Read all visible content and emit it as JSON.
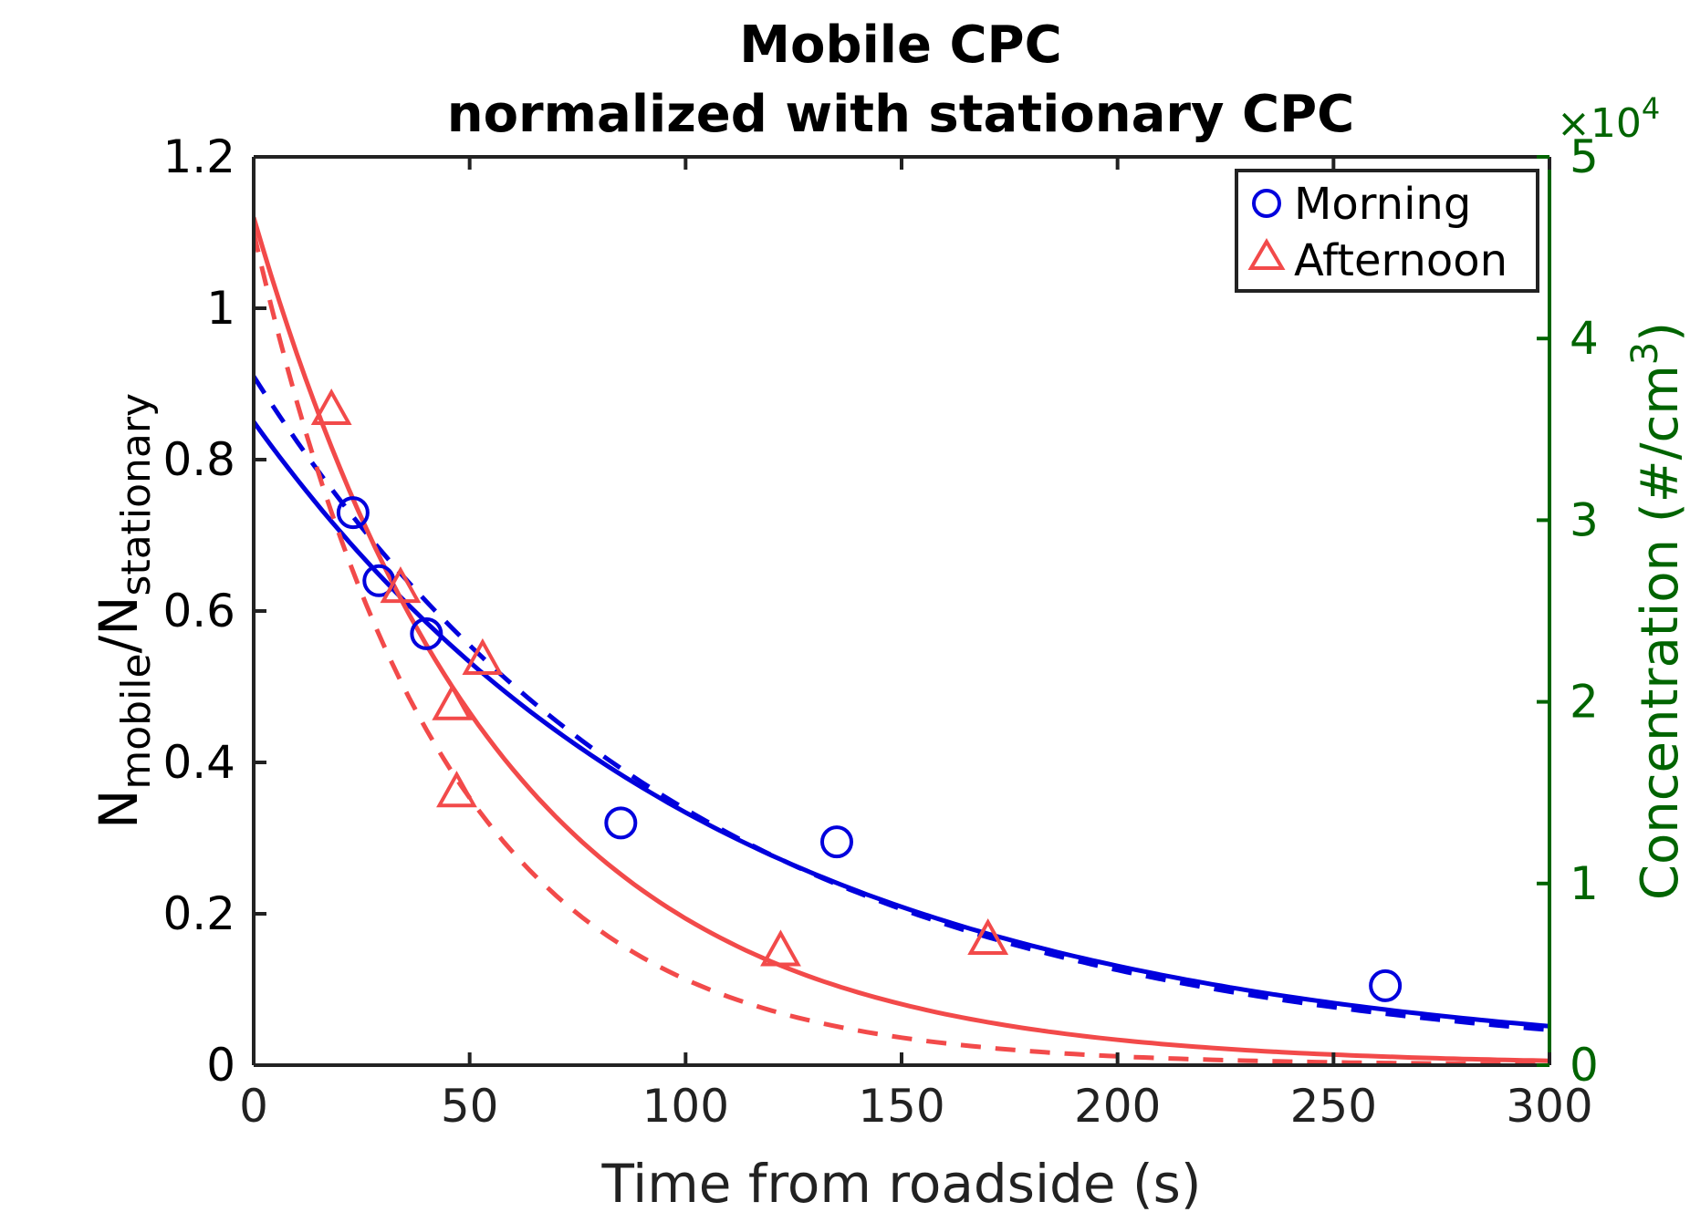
{
  "chart_data": {
    "type": "scatter",
    "title": [
      "Mobile CPC",
      "normalized with stationary CPC"
    ],
    "xlabel": "Time from roadside (s)",
    "ylabel": {
      "base": "N",
      "sub1": "mobile",
      "slash": "/N",
      "sub2": "stationary"
    },
    "y2label": {
      "text": "Concentration (#/cm",
      "sup": "3",
      "close": ")"
    },
    "y2_multiplier": {
      "times": "×10",
      "exp": "4"
    },
    "xlim": [
      0,
      300
    ],
    "ylim": [
      0,
      1.2
    ],
    "y2lim": [
      0,
      5
    ],
    "xticks": [
      0,
      50,
      100,
      150,
      200,
      250,
      300
    ],
    "xtick_labels": [
      "0",
      "50",
      "100",
      "150",
      "200",
      "250",
      "300"
    ],
    "yticks": [
      0,
      0.2,
      0.4,
      0.6,
      0.8,
      1,
      1.2
    ],
    "ytick_labels": [
      "0",
      "0.2",
      "0.4",
      "0.6",
      "0.8",
      "1",
      "1.2"
    ],
    "y2ticks": [
      0,
      1,
      2,
      3,
      4,
      5
    ],
    "y2tick_labels": [
      "0",
      "1",
      "2",
      "3",
      "4",
      "5"
    ],
    "series": [
      {
        "name": "Morning",
        "color": "#0000dd",
        "marker": "circle",
        "x": [
          23,
          29,
          40,
          85,
          135,
          262
        ],
        "y": [
          0.73,
          0.64,
          0.57,
          0.32,
          0.295,
          0.105
        ],
        "fit_solid": {
          "a": 0.85,
          "tau": 107
        },
        "fit_dashed": {
          "a": 0.91,
          "tau": 101
        }
      },
      {
        "name": "Afternoon",
        "color": "#f24a4a",
        "marker": "triangle",
        "x": [
          18,
          34,
          46,
          47,
          53,
          122,
          170
        ],
        "y": [
          0.865,
          0.63,
          0.475,
          0.36,
          0.535,
          0.15,
          0.165
        ],
        "fit_solid": {
          "a": 1.12,
          "tau": 57
        },
        "fit_dashed": {
          "a": 1.1,
          "tau": 44
        }
      }
    ],
    "legend": {
      "position": "top-right",
      "entries": [
        "Morning",
        "Afternoon"
      ]
    },
    "colors": {
      "axis": "#222222",
      "right_axis": "#006400",
      "text": "#000000"
    }
  }
}
